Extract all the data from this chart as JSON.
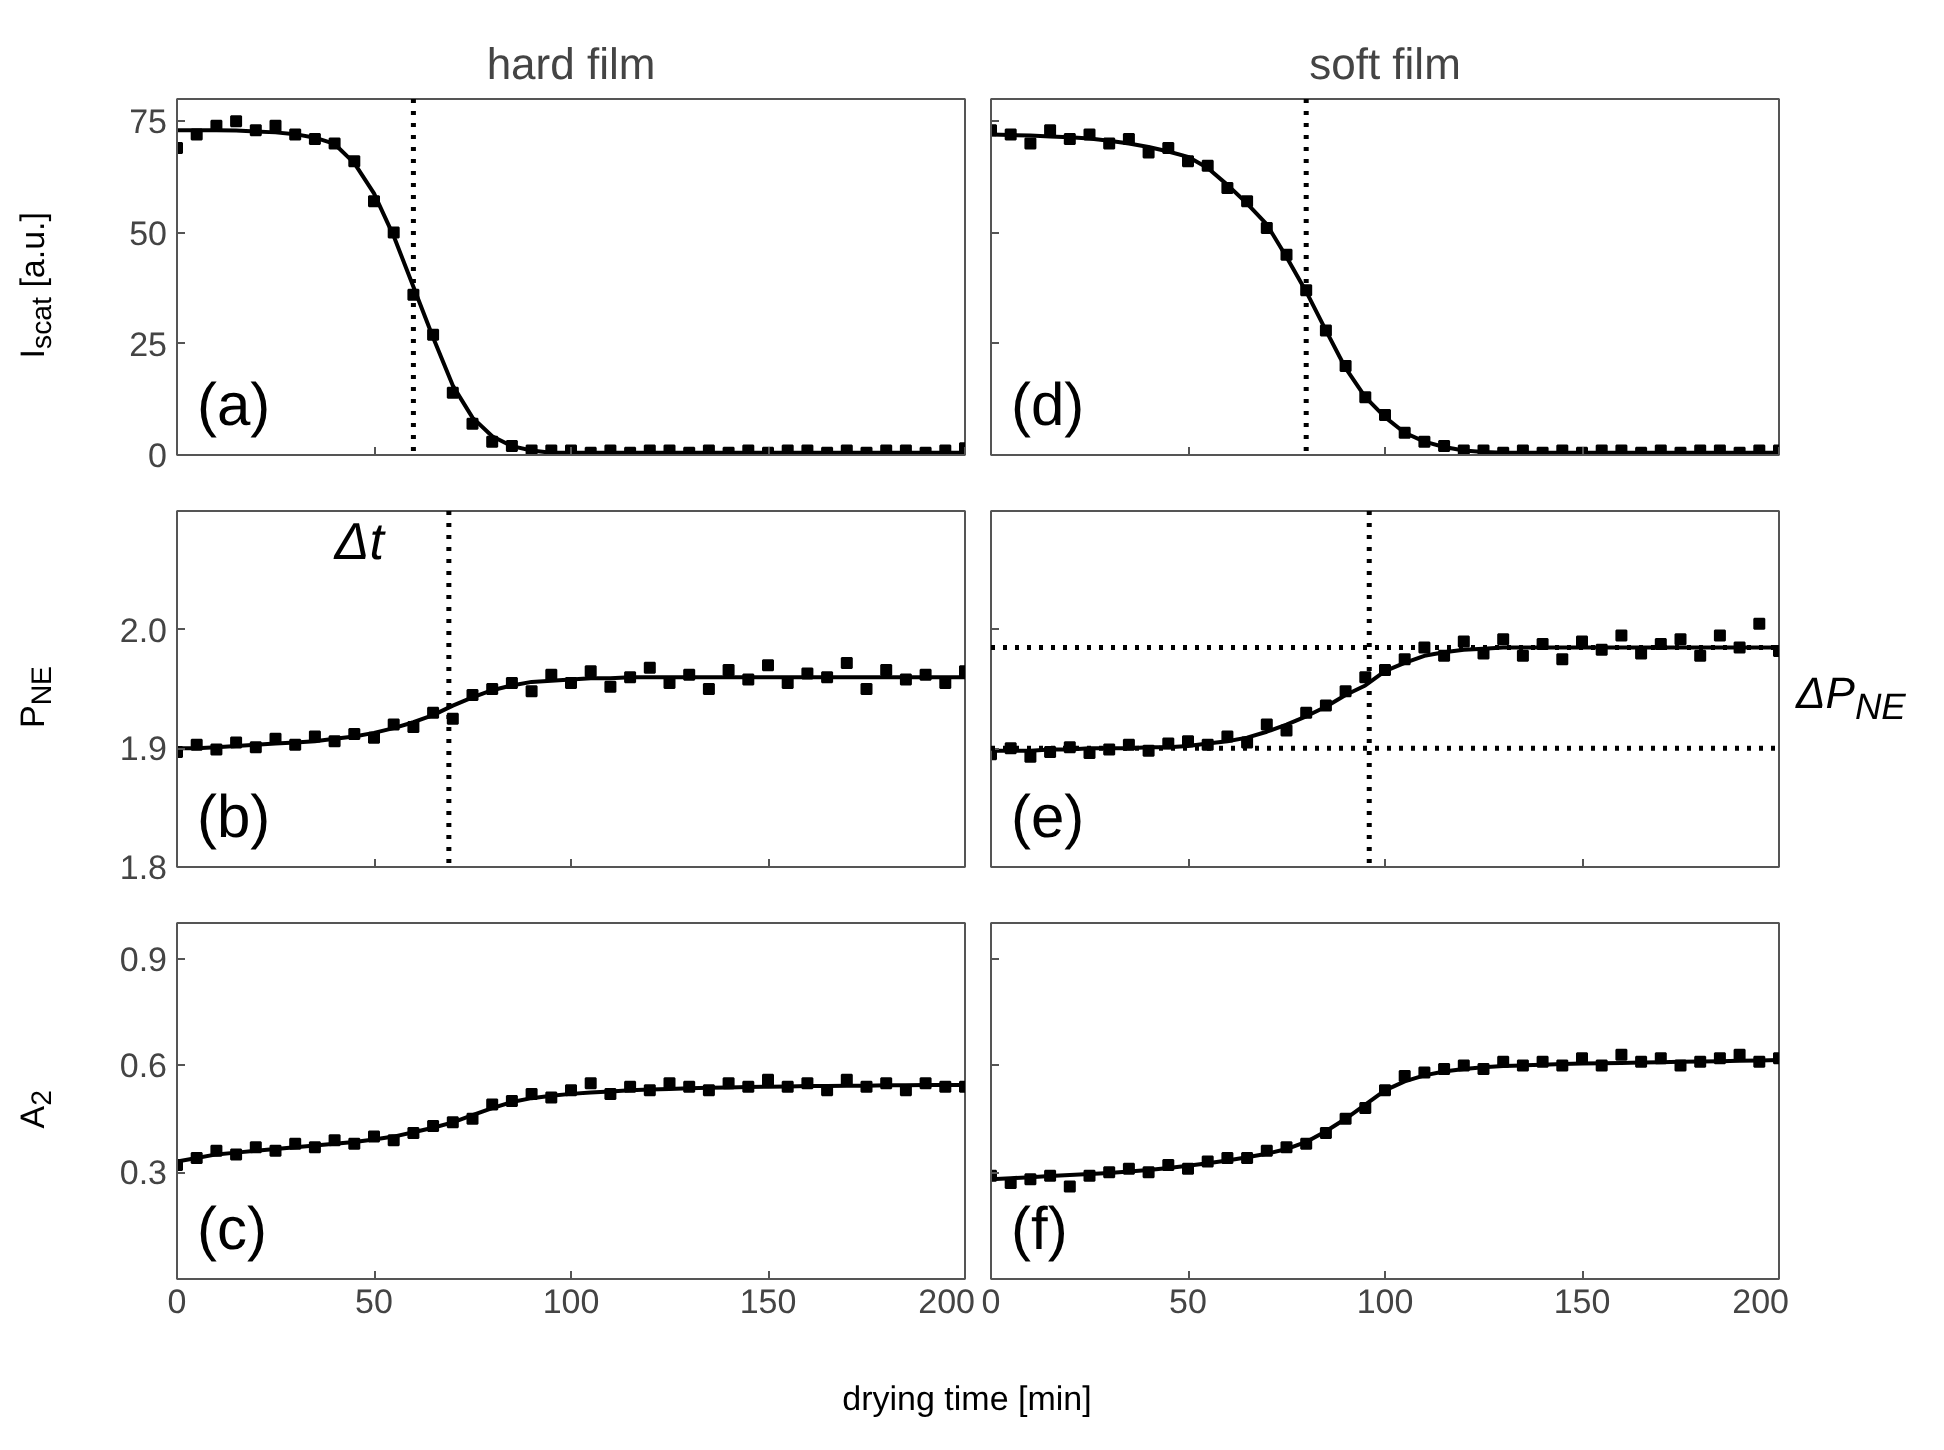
{
  "chart_data": [
    {
      "type": "scatter",
      "title": "hard film",
      "ylabel": "I$_{scat}$ [a.u.]",
      "annotations": [
        "(a)"
      ],
      "xlim": [
        0,
        200
      ],
      "xticks": [
        0,
        50,
        100,
        150,
        200
      ],
      "ylim": [
        0,
        80
      ],
      "yticks": [
        0,
        25,
        50,
        75
      ],
      "tick_labels": "y",
      "x": [
        0,
        5,
        10,
        15,
        20,
        25,
        30,
        35,
        40,
        45,
        50,
        55,
        60,
        65,
        70,
        75,
        80,
        85,
        90,
        95,
        100,
        105,
        110,
        115,
        120,
        125,
        130,
        135,
        140,
        145,
        150,
        155,
        160,
        165,
        170,
        175,
        180,
        185,
        190,
        195,
        200
      ],
      "ref_lines": [
        {
          "axis": "x",
          "value": 60,
          "line_style": "dotted",
          "color": "#000000"
        }
      ],
      "series": [
        {
          "type": "scatter",
          "marker": "square",
          "color": "#000000",
          "values": [
            69,
            72,
            74,
            75,
            73,
            74,
            72,
            71,
            70,
            66,
            57,
            50,
            36,
            27,
            14,
            7,
            3,
            2,
            1,
            1,
            1,
            0.5,
            1,
            0.5,
            1,
            1,
            0.5,
            1,
            0.5,
            1,
            0.5,
            1,
            1,
            0.5,
            1,
            0.5,
            1,
            1,
            0.5,
            1,
            1.5
          ]
        },
        {
          "type": "line",
          "marker": "none",
          "color": "#000000",
          "values": [
            73,
            73,
            73,
            72.9,
            72.7,
            72.5,
            72.1,
            71.3,
            69.9,
            65.6,
            58.8,
            49.2,
            37.8,
            26.4,
            15.6,
            8.4,
            4.2,
            2,
            1,
            0.5,
            0.5,
            0.5,
            0.5,
            0.5,
            0.5,
            0.5,
            0.5,
            0.5,
            0.5,
            0.5,
            0.5,
            0.5,
            0.5,
            0.5,
            0.5,
            0.5,
            0.5,
            0.5,
            0.5,
            0.5,
            0.5
          ]
        }
      ]
    },
    {
      "type": "scatter",
      "ylabel": "P$_{NE}$",
      "annotations": [
        "(b)",
        "Δt"
      ],
      "xlim": [
        0,
        200
      ],
      "xticks": [
        0,
        50,
        100,
        150,
        200
      ],
      "ylim": [
        1.8,
        2.1
      ],
      "yticks": [
        1.8,
        1.9,
        {
          "value": 2,
          "label": "2.0"
        }
      ],
      "tick_labels": "y",
      "x": [
        0,
        5,
        10,
        15,
        20,
        25,
        30,
        35,
        40,
        45,
        50,
        55,
        60,
        65,
        70,
        75,
        80,
        85,
        90,
        95,
        100,
        105,
        110,
        115,
        120,
        125,
        130,
        135,
        140,
        145,
        150,
        155,
        160,
        165,
        170,
        175,
        180,
        185,
        190,
        195,
        200
      ],
      "ref_lines": [
        {
          "axis": "x",
          "value": 69,
          "line_style": "dotted",
          "color": "#000000"
        }
      ],
      "series": [
        {
          "type": "scatter",
          "marker": "square",
          "color": "#000000",
          "values": [
            1.897,
            1.903,
            1.899,
            1.905,
            1.901,
            1.908,
            1.903,
            1.91,
            1.906,
            1.912,
            1.909,
            1.92,
            1.918,
            1.93,
            1.925,
            1.945,
            1.95,
            1.955,
            1.948,
            1.962,
            1.955,
            1.965,
            1.952,
            1.96,
            1.968,
            1.955,
            1.962,
            1.95,
            1.966,
            1.958,
            1.97,
            1.955,
            1.963,
            1.96,
            1.972,
            1.95,
            1.966,
            1.958,
            1.962,
            1.955,
            1.965
          ]
        },
        {
          "type": "line",
          "marker": "none",
          "color": "#000000",
          "values": [
            1.9,
            1.9,
            1.901,
            1.902,
            1.903,
            1.904,
            1.905,
            1.906,
            1.908,
            1.91,
            1.913,
            1.917,
            1.922,
            1.928,
            1.936,
            1.943,
            1.949,
            1.953,
            1.956,
            1.957,
            1.958,
            1.959,
            1.959,
            1.96,
            1.96,
            1.96,
            1.96,
            1.96,
            1.96,
            1.96,
            1.96,
            1.96,
            1.96,
            1.96,
            1.96,
            1.96,
            1.96,
            1.96,
            1.96,
            1.96,
            1.96
          ]
        }
      ]
    },
    {
      "type": "scatter",
      "ylabel": "A$_{2}$",
      "xlabel": "drying time [min]",
      "annotations": [
        "(c)"
      ],
      "xlim": [
        0,
        200
      ],
      "xticks": [
        0,
        50,
        100,
        150,
        200
      ],
      "ylim": [
        0,
        1
      ],
      "yticks": [
        0.3,
        0.6,
        0.9
      ],
      "x": [
        0,
        5,
        10,
        15,
        20,
        25,
        30,
        35,
        40,
        45,
        50,
        55,
        60,
        65,
        70,
        75,
        80,
        85,
        90,
        95,
        100,
        105,
        110,
        115,
        120,
        125,
        130,
        135,
        140,
        145,
        150,
        155,
        160,
        165,
        170,
        175,
        180,
        185,
        190,
        195,
        200
      ],
      "series": [
        {
          "type": "scatter",
          "marker": "square",
          "color": "#000000",
          "values": [
            0.32,
            0.34,
            0.36,
            0.35,
            0.37,
            0.36,
            0.38,
            0.37,
            0.39,
            0.38,
            0.4,
            0.39,
            0.41,
            0.43,
            0.44,
            0.45,
            0.49,
            0.5,
            0.52,
            0.51,
            0.53,
            0.55,
            0.52,
            0.54,
            0.53,
            0.55,
            0.54,
            0.53,
            0.55,
            0.54,
            0.56,
            0.54,
            0.55,
            0.53,
            0.56,
            0.54,
            0.55,
            0.53,
            0.55,
            0.54,
            0.54
          ]
        },
        {
          "type": "line",
          "marker": "none",
          "color": "#000000",
          "values": [
            0.33,
            0.34,
            0.35,
            0.355,
            0.36,
            0.365,
            0.37,
            0.375,
            0.38,
            0.385,
            0.392,
            0.4,
            0.412,
            0.425,
            0.44,
            0.46,
            0.48,
            0.497,
            0.508,
            0.515,
            0.52,
            0.524,
            0.527,
            0.53,
            0.532,
            0.534,
            0.536,
            0.537,
            0.538,
            0.539,
            0.54,
            0.541,
            0.542,
            0.542,
            0.543,
            0.543,
            0.544,
            0.544,
            0.545,
            0.545,
            0.545
          ]
        }
      ]
    },
    {
      "type": "scatter",
      "title": "soft film",
      "annotations": [
        "(d)"
      ],
      "xlim": [
        0,
        200
      ],
      "xticks": [
        0,
        50,
        100,
        150,
        200
      ],
      "ylim": [
        0,
        80
      ],
      "yticks": [
        0,
        25,
        50,
        75
      ],
      "tick_labels": false,
      "x": [
        0,
        5,
        10,
        15,
        20,
        25,
        30,
        35,
        40,
        45,
        50,
        55,
        60,
        65,
        70,
        75,
        80,
        85,
        90,
        95,
        100,
        105,
        110,
        115,
        120,
        125,
        130,
        135,
        140,
        145,
        150,
        155,
        160,
        165,
        170,
        175,
        180,
        185,
        190,
        195,
        200
      ],
      "ref_lines": [
        {
          "axis": "x",
          "value": 80,
          "line_style": "dotted",
          "color": "#000000"
        }
      ],
      "series": [
        {
          "type": "scatter",
          "marker": "square",
          "color": "#000000",
          "values": [
            73,
            72,
            70,
            73,
            71,
            72,
            70,
            71,
            68,
            69,
            66,
            65,
            60,
            57,
            51,
            45,
            37,
            28,
            20,
            13,
            9,
            5,
            3,
            2,
            1,
            1,
            0.5,
            1,
            0.5,
            1,
            0.5,
            1,
            1,
            0.5,
            1,
            0.5,
            1,
            1,
            0.5,
            1,
            1
          ]
        },
        {
          "type": "line",
          "marker": "none",
          "color": "#000000",
          "values": [
            72,
            71.9,
            71.8,
            71.6,
            71.4,
            71.1,
            70.6,
            70,
            69.2,
            68.2,
            67,
            64.5,
            60.7,
            56.5,
            51.8,
            44.5,
            36.7,
            28,
            19.5,
            13,
            8.5,
            5,
            3,
            1.8,
            1,
            0.7,
            0.5,
            0.5,
            0.5,
            0.5,
            0.5,
            0.5,
            0.5,
            0.5,
            0.5,
            0.5,
            0.5,
            0.5,
            0.5,
            0.5,
            0.5
          ]
        }
      ]
    },
    {
      "type": "scatter",
      "annotations": [
        "(e)",
        "ΔP$_{NE}$"
      ],
      "xlim": [
        0,
        200
      ],
      "xticks": [
        0,
        50,
        100,
        150,
        200
      ],
      "ylim": [
        1.8,
        2.1
      ],
      "yticks": [
        1.8,
        1.9,
        2
      ],
      "tick_labels": false,
      "x": [
        0,
        5,
        10,
        15,
        20,
        25,
        30,
        35,
        40,
        45,
        50,
        55,
        60,
        65,
        70,
        75,
        80,
        85,
        90,
        95,
        100,
        105,
        110,
        115,
        120,
        125,
        130,
        135,
        140,
        145,
        150,
        155,
        160,
        165,
        170,
        175,
        180,
        185,
        190,
        195,
        200
      ],
      "ref_lines": [
        {
          "axis": "x",
          "value": 96,
          "line_style": "dotted",
          "color": "#000000"
        },
        {
          "axis": "y",
          "value": 1.985,
          "line_style": "dotted",
          "color": "#000000"
        },
        {
          "axis": "y",
          "value": 1.9,
          "line_style": "dotted",
          "color": "#000000"
        }
      ],
      "series": [
        {
          "type": "scatter",
          "marker": "square",
          "color": "#000000",
          "values": [
            1.895,
            1.9,
            1.893,
            1.897,
            1.901,
            1.896,
            1.899,
            1.903,
            1.898,
            1.904,
            1.906,
            1.903,
            1.91,
            1.905,
            1.92,
            1.915,
            1.93,
            1.936,
            1.948,
            1.96,
            1.966,
            1.975,
            1.985,
            1.978,
            1.99,
            1.98,
            1.992,
            1.978,
            1.988,
            1.975,
            1.99,
            1.983,
            1.995,
            1.98,
            1.988,
            1.992,
            1.978,
            1.995,
            1.985,
            2.005,
            1.982
          ]
        },
        {
          "type": "line",
          "marker": "none",
          "color": "#000000",
          "values": [
            1.898,
            1.898,
            1.898,
            1.899,
            1.899,
            1.9,
            1.9,
            1.9,
            1.901,
            1.901,
            1.902,
            1.904,
            1.906,
            1.909,
            1.914,
            1.92,
            1.927,
            1.935,
            1.945,
            1.953,
            1.965,
            1.972,
            1.978,
            1.981,
            1.983,
            1.984,
            1.985,
            1.985,
            1.985,
            1.985,
            1.985,
            1.985,
            1.985,
            1.985,
            1.985,
            1.985,
            1.985,
            1.985,
            1.985,
            1.985,
            1.985
          ]
        }
      ]
    },
    {
      "type": "scatter",
      "annotations": [
        "(f)"
      ],
      "xlim": [
        0,
        200
      ],
      "xticks": [
        0,
        50,
        100,
        150,
        200
      ],
      "ylim": [
        0,
        1
      ],
      "yticks": [
        0.3,
        0.6,
        0.9
      ],
      "tick_labels": "x",
      "x": [
        0,
        5,
        10,
        15,
        20,
        25,
        30,
        35,
        40,
        45,
        50,
        55,
        60,
        65,
        70,
        75,
        80,
        85,
        90,
        95,
        100,
        105,
        110,
        115,
        120,
        125,
        130,
        135,
        140,
        145,
        150,
        155,
        160,
        165,
        170,
        175,
        180,
        185,
        190,
        195,
        200
      ],
      "series": [
        {
          "type": "scatter",
          "marker": "square",
          "color": "#000000",
          "values": [
            0.29,
            0.27,
            0.28,
            0.29,
            0.26,
            0.29,
            0.3,
            0.31,
            0.3,
            0.32,
            0.31,
            0.33,
            0.34,
            0.34,
            0.36,
            0.37,
            0.38,
            0.41,
            0.45,
            0.48,
            0.53,
            0.57,
            0.58,
            0.59,
            0.6,
            0.59,
            0.61,
            0.6,
            0.61,
            0.6,
            0.62,
            0.6,
            0.63,
            0.61,
            0.62,
            0.6,
            0.61,
            0.62,
            0.63,
            0.61,
            0.62
          ]
        },
        {
          "type": "line",
          "marker": "none",
          "color": "#000000",
          "values": [
            0.28,
            0.283,
            0.286,
            0.289,
            0.292,
            0.295,
            0.298,
            0.302,
            0.306,
            0.312,
            0.318,
            0.325,
            0.333,
            0.342,
            0.352,
            0.365,
            0.385,
            0.415,
            0.45,
            0.49,
            0.53,
            0.555,
            0.572,
            0.583,
            0.59,
            0.595,
            0.598,
            0.6,
            0.602,
            0.604,
            0.605,
            0.606,
            0.607,
            0.608,
            0.609,
            0.61,
            0.611,
            0.612,
            0.613,
            0.614,
            0.615
          ]
        }
      ]
    }
  ]
}
